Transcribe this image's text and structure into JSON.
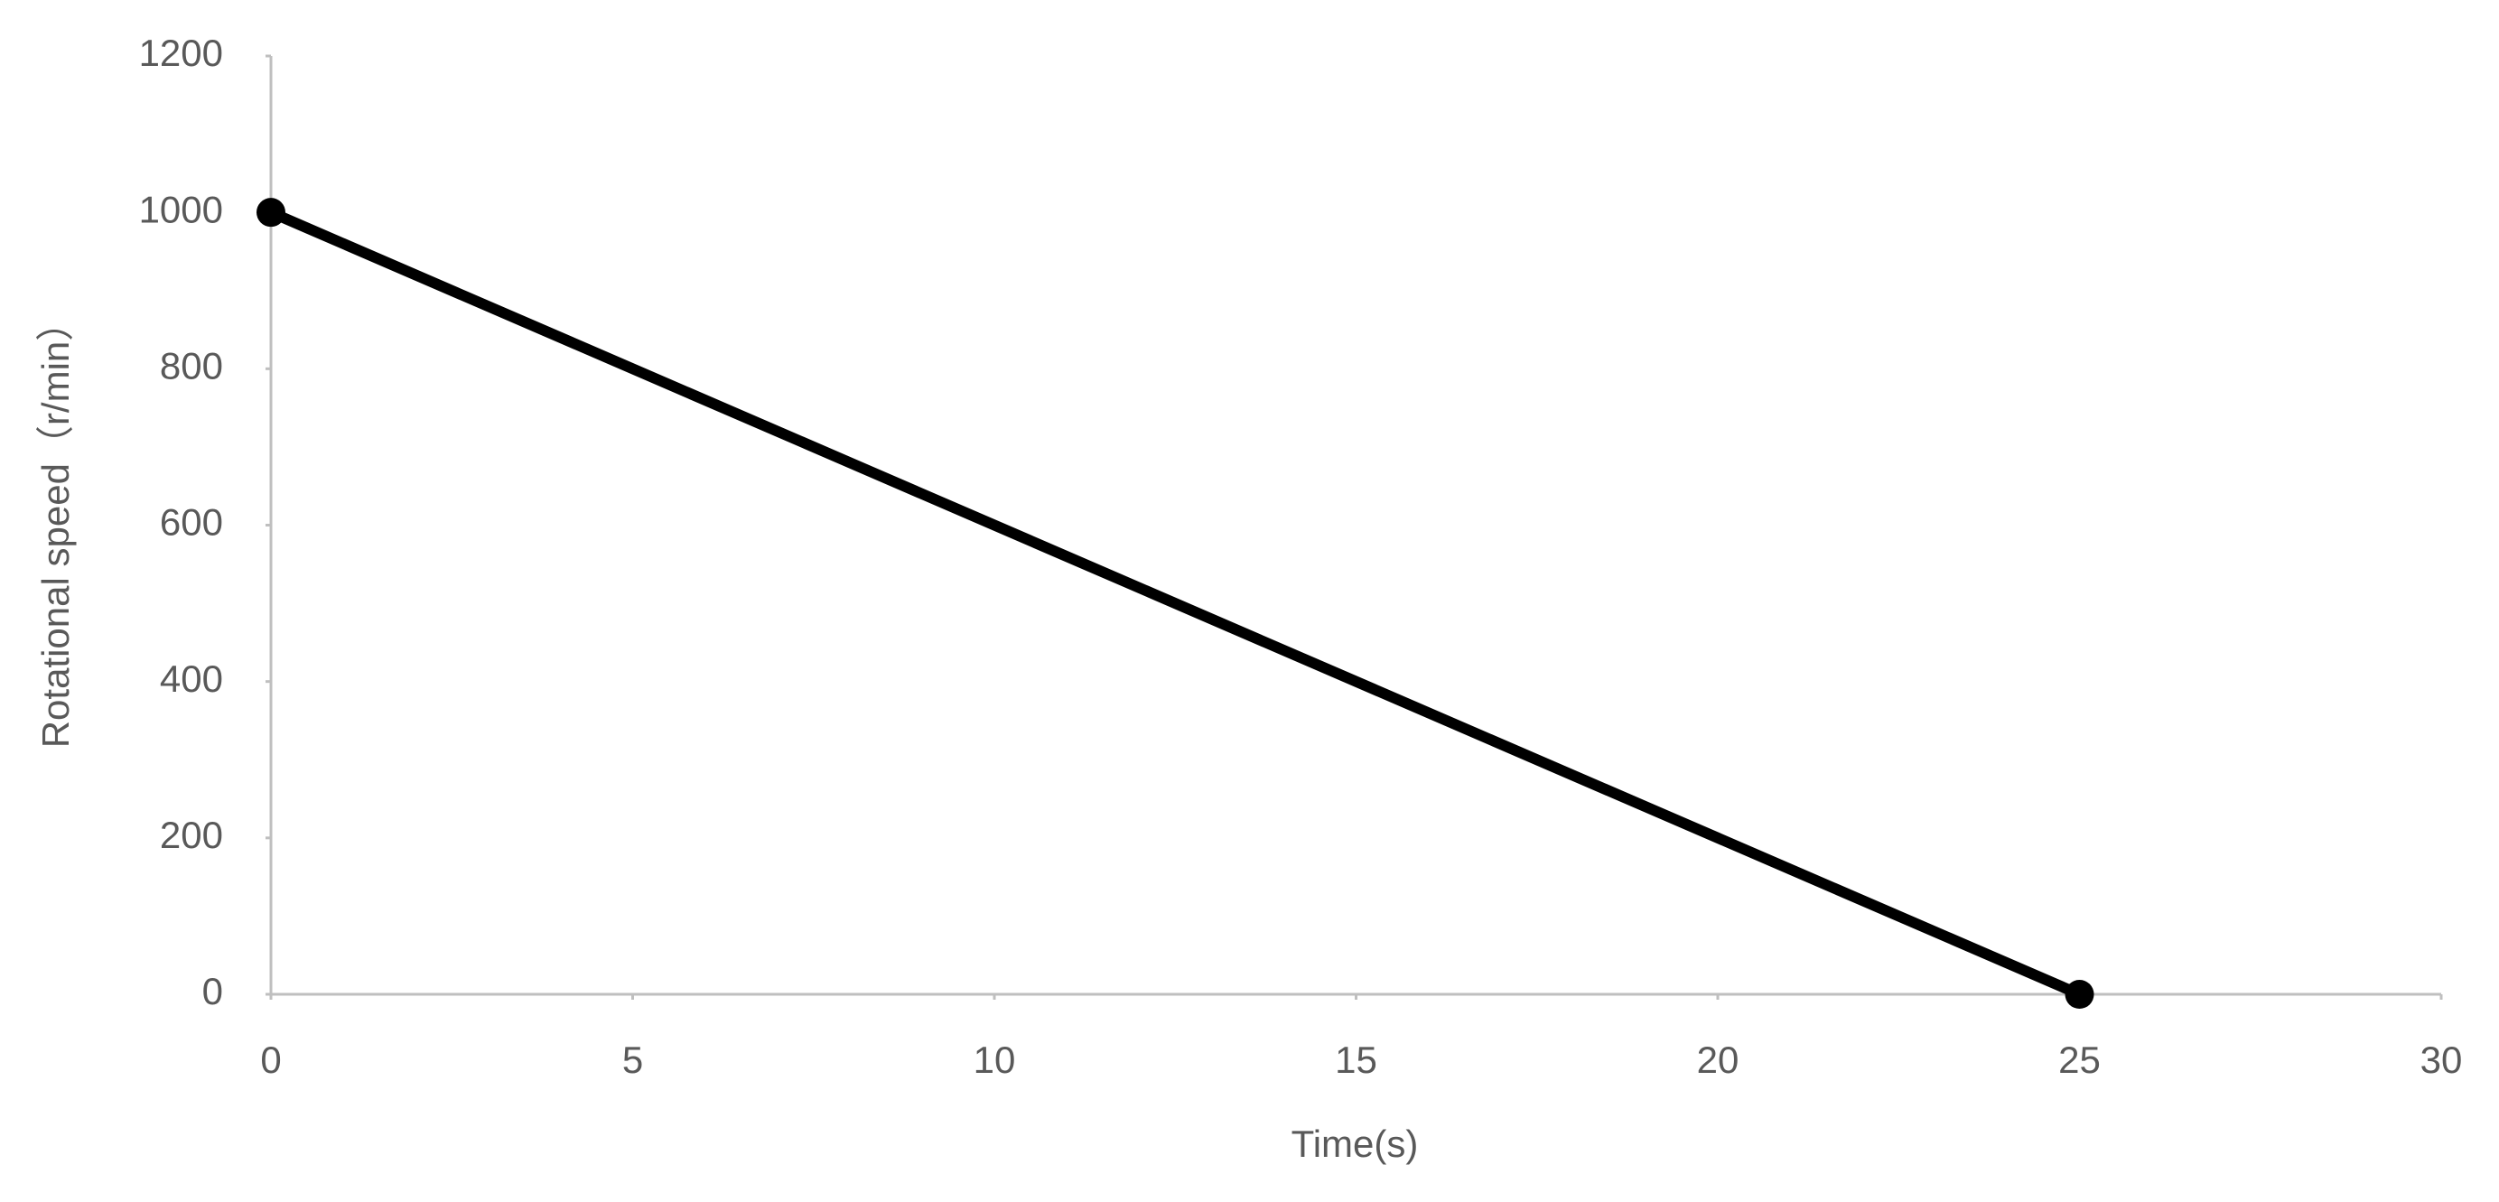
{
  "chart_data": {
    "type": "line",
    "x_label": "Time(s)",
    "y_label": "Rotational speed（r/min）",
    "x": [
      0,
      25
    ],
    "values": [
      1000,
      0
    ],
    "color": "#000000",
    "markers": true,
    "xlim": [
      0,
      30
    ],
    "xticks": [
      0,
      5,
      10,
      15,
      20,
      25,
      30
    ],
    "ylim": [
      0,
      1200
    ],
    "yticks": [
      0,
      200,
      400,
      600,
      800,
      1000,
      1200
    ],
    "grid": false
  }
}
